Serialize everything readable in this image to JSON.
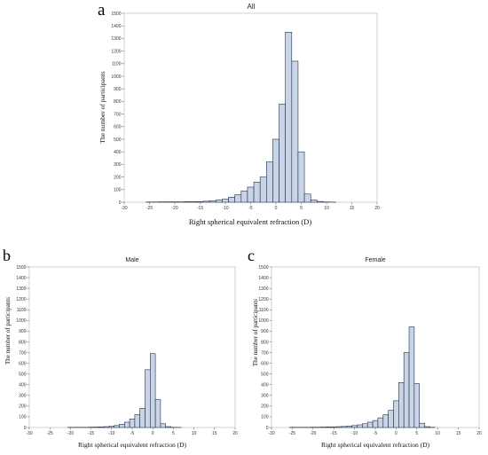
{
  "chart_data": [
    {
      "letter": "a",
      "type": "bar",
      "title": "All",
      "xlabel": "Right spherical equivalent refraction   (D)",
      "ylabel": "The number of participants",
      "xlim": [
        -30,
        20
      ],
      "ylim": [
        0,
        1500
      ],
      "xticks": [
        -30,
        -25,
        -20,
        -15,
        -10,
        -5,
        0,
        5,
        10,
        15,
        20
      ],
      "yticks": [
        0,
        100,
        200,
        300,
        400,
        500,
        600,
        700,
        800,
        900,
        1000,
        1100,
        1200,
        1300,
        1400,
        1500
      ],
      "bin_width": 1.25,
      "bin_start": -25.625,
      "values": [
        2,
        2,
        3,
        3,
        3,
        3,
        4,
        4,
        5,
        8,
        12,
        18,
        25,
        40,
        60,
        90,
        120,
        160,
        200,
        320,
        500,
        780,
        1350,
        1120,
        400,
        65,
        18,
        6,
        2,
        1,
        0,
        0,
        0,
        0,
        0
      ],
      "grid": false,
      "bar_color": "#c9d5e6"
    },
    {
      "letter": "b",
      "type": "bar",
      "title": "Male",
      "xlabel": "Right spherical equivalent refraction (D)",
      "ylabel": "The number of participants",
      "xlim": [
        -30,
        20
      ],
      "ylim": [
        0,
        1500
      ],
      "xticks": [
        -30,
        -25,
        -20,
        -15,
        -10,
        -5,
        0,
        5,
        10,
        15,
        20
      ],
      "yticks": [
        0,
        100,
        200,
        300,
        400,
        500,
        600,
        700,
        800,
        900,
        1000,
        1100,
        1200,
        1300,
        1400,
        1500
      ],
      "bin_width": 1.25,
      "bin_start": -20.625,
      "values": [
        2,
        2,
        2,
        2,
        3,
        4,
        6,
        8,
        12,
        18,
        30,
        50,
        80,
        120,
        180,
        540,
        690,
        260,
        35,
        8,
        2,
        1
      ],
      "grid": false,
      "bar_color": "#c9d5e6"
    },
    {
      "letter": "c",
      "type": "bar",
      "title": "Female",
      "xlabel": "Right spherical equivalent refraction (D)",
      "ylabel": "The number of participants",
      "xlim": [
        -30,
        20
      ],
      "ylim": [
        0,
        1500
      ],
      "xticks": [
        -30,
        -25,
        -20,
        -15,
        -10,
        -5,
        0,
        5,
        10,
        15,
        20
      ],
      "yticks": [
        0,
        100,
        200,
        300,
        400,
        500,
        600,
        700,
        800,
        900,
        1000,
        1100,
        1200,
        1300,
        1400,
        1500
      ],
      "bin_width": 1.25,
      "bin_start": -25.625,
      "values": [
        2,
        2,
        2,
        2,
        3,
        3,
        4,
        5,
        6,
        8,
        10,
        14,
        18,
        25,
        35,
        50,
        65,
        90,
        120,
        160,
        250,
        420,
        700,
        940,
        410,
        40,
        8,
        2
      ],
      "grid": false,
      "bar_color": "#c9d5e6"
    }
  ]
}
